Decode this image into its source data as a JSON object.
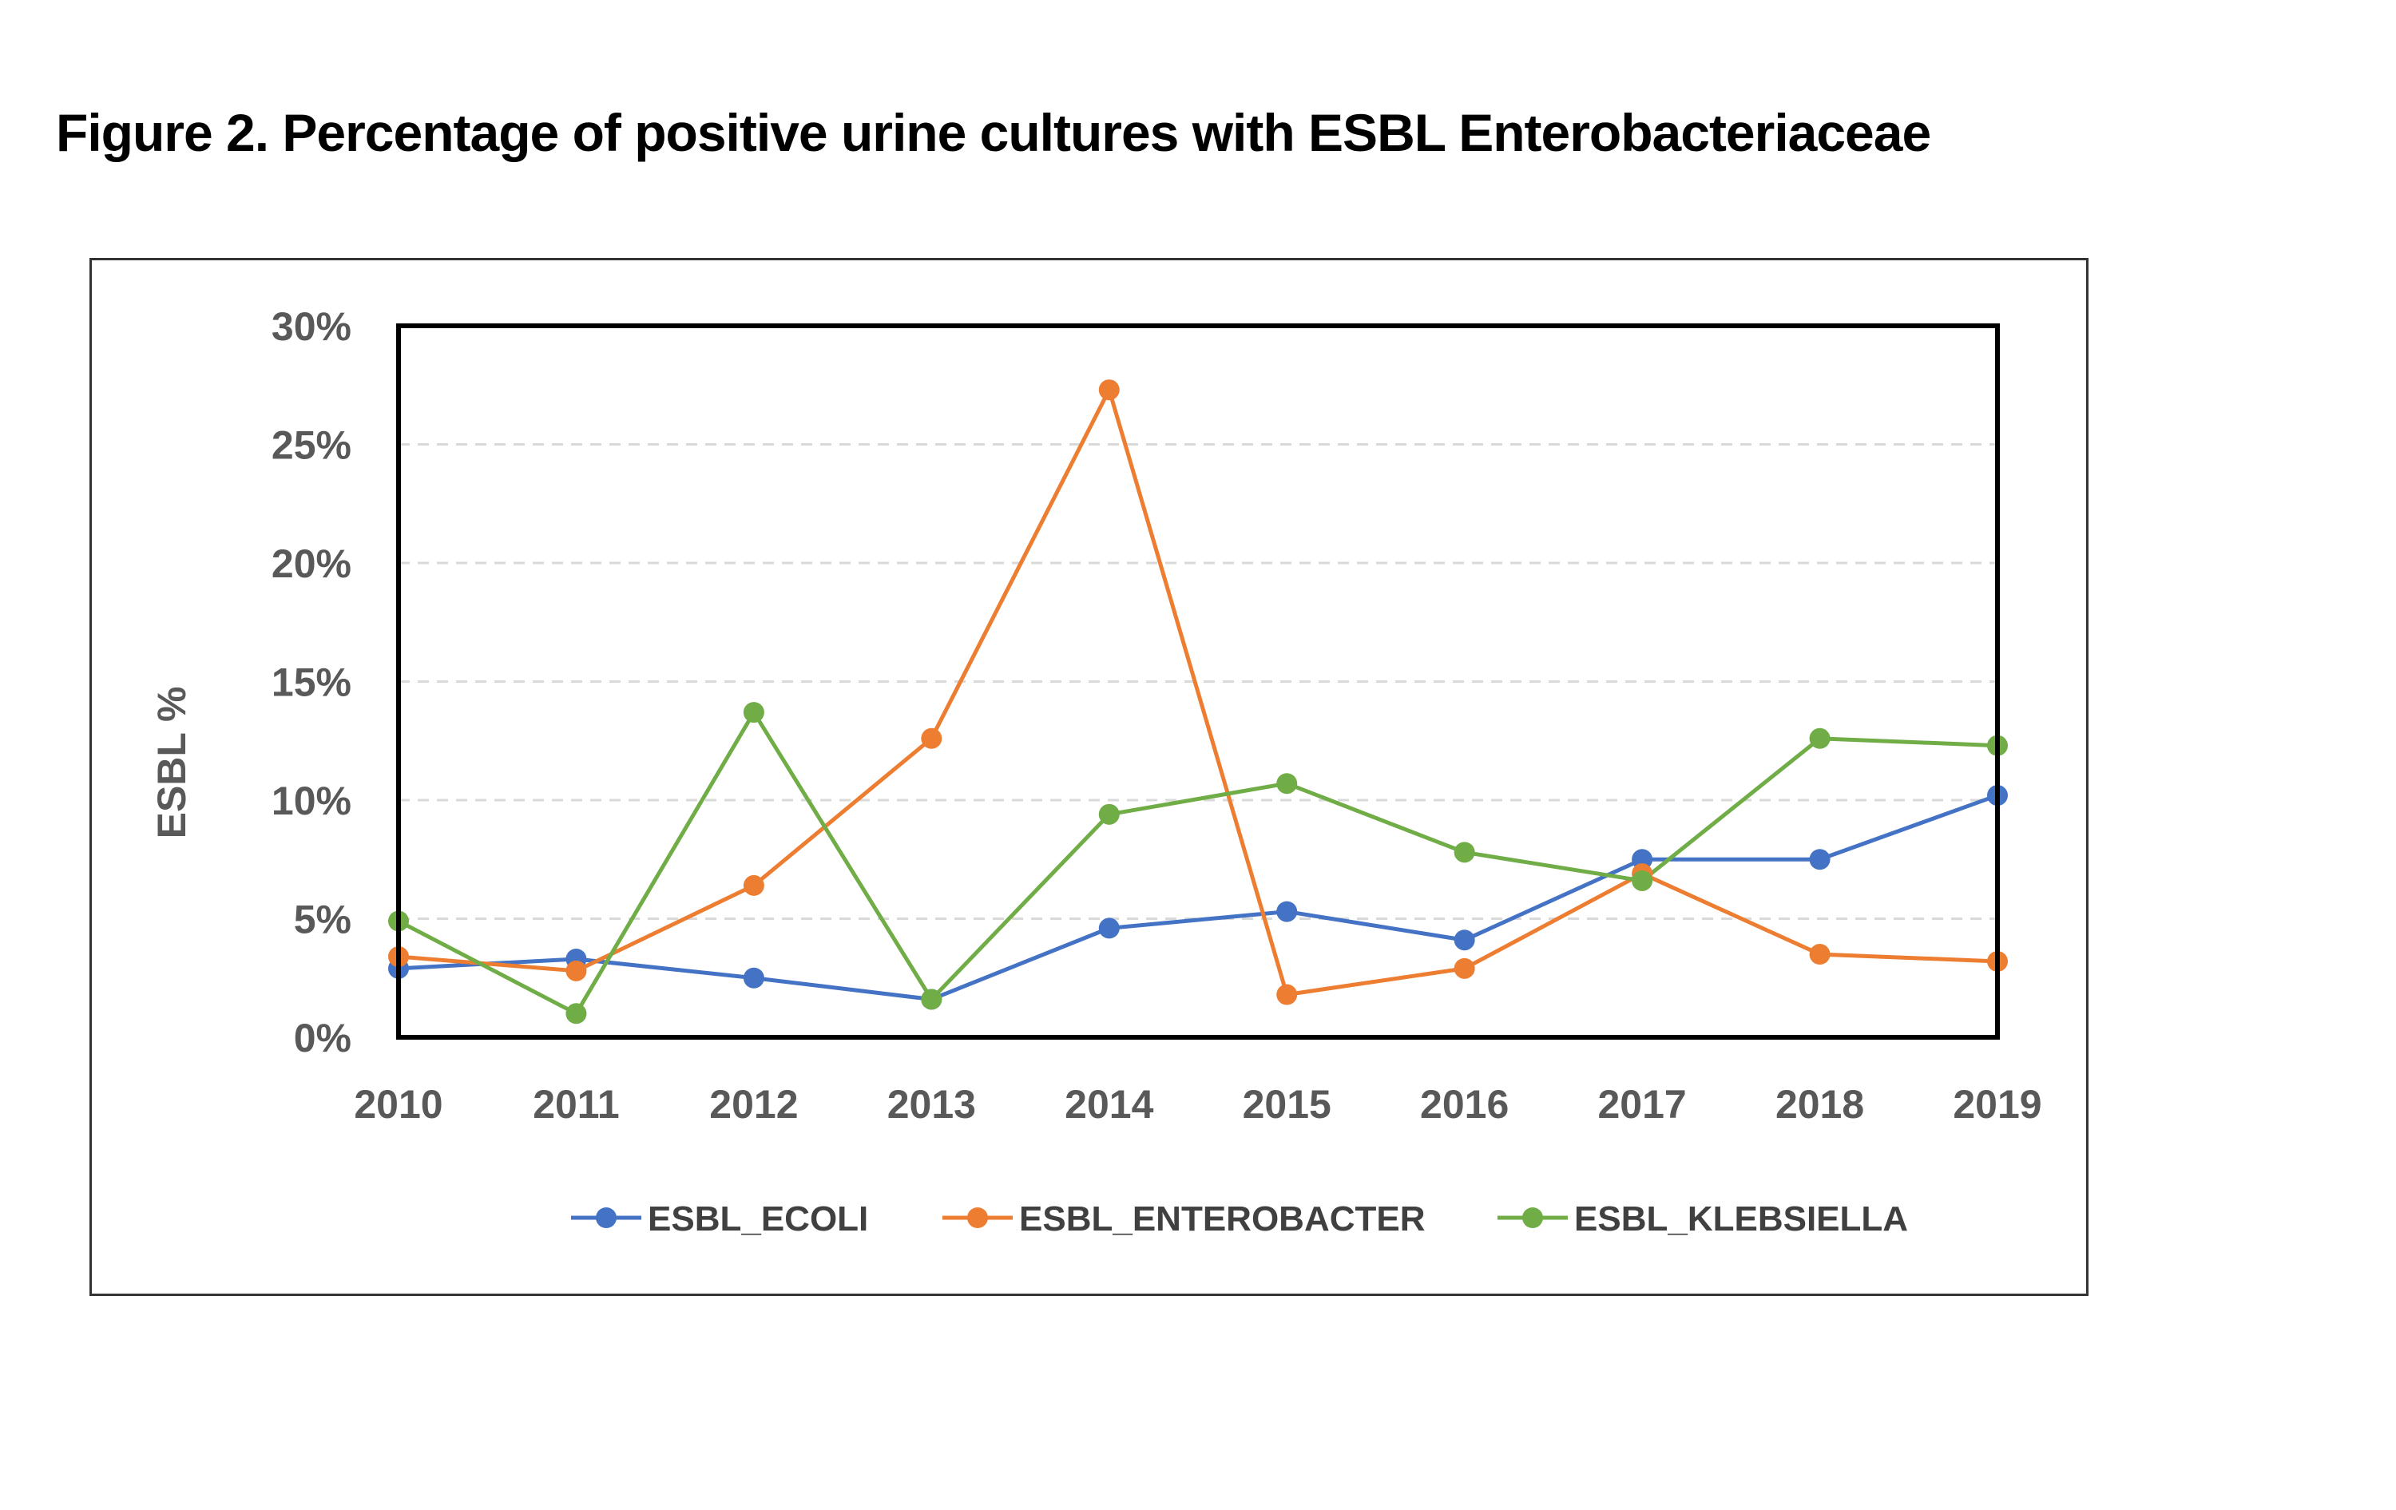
{
  "title": "Figure 2. Percentage of positive urine cultures with ESBL Enterobacteriaceae",
  "chart_data": {
    "type": "line",
    "title": "Figure 2. Percentage of positive urine cultures with ESBL Enterobacteriaceae",
    "xlabel": "",
    "ylabel": "ESBL %",
    "x": [
      "2010",
      "2011",
      "2012",
      "2013",
      "2014",
      "2015",
      "2016",
      "2017",
      "2018",
      "2019"
    ],
    "ylim": [
      0,
      30
    ],
    "yticks": [
      "0%",
      "5%",
      "10%",
      "15%",
      "20%",
      "25%",
      "30%"
    ],
    "ytick_values": [
      0,
      5,
      10,
      15,
      20,
      25,
      30
    ],
    "grid": "horizontal dashed",
    "legend": "bottom",
    "series": [
      {
        "name": "ESBL_ECOLI",
        "color": "#4472C4",
        "values": [
          2.9,
          3.3,
          2.5,
          1.6,
          4.6,
          5.3,
          4.1,
          7.5,
          7.5,
          10.2
        ]
      },
      {
        "name": "ESBL_ENTEROBACTER",
        "color": "#ED7D31",
        "values": [
          3.4,
          2.8,
          6.4,
          12.6,
          27.3,
          1.8,
          2.9,
          6.9,
          3.5,
          3.2
        ]
      },
      {
        "name": "ESBL_KLEBSIELLA",
        "color": "#70AD47",
        "values": [
          4.9,
          1.0,
          13.7,
          1.6,
          9.4,
          10.7,
          7.8,
          6.6,
          12.6,
          12.3
        ]
      }
    ]
  }
}
